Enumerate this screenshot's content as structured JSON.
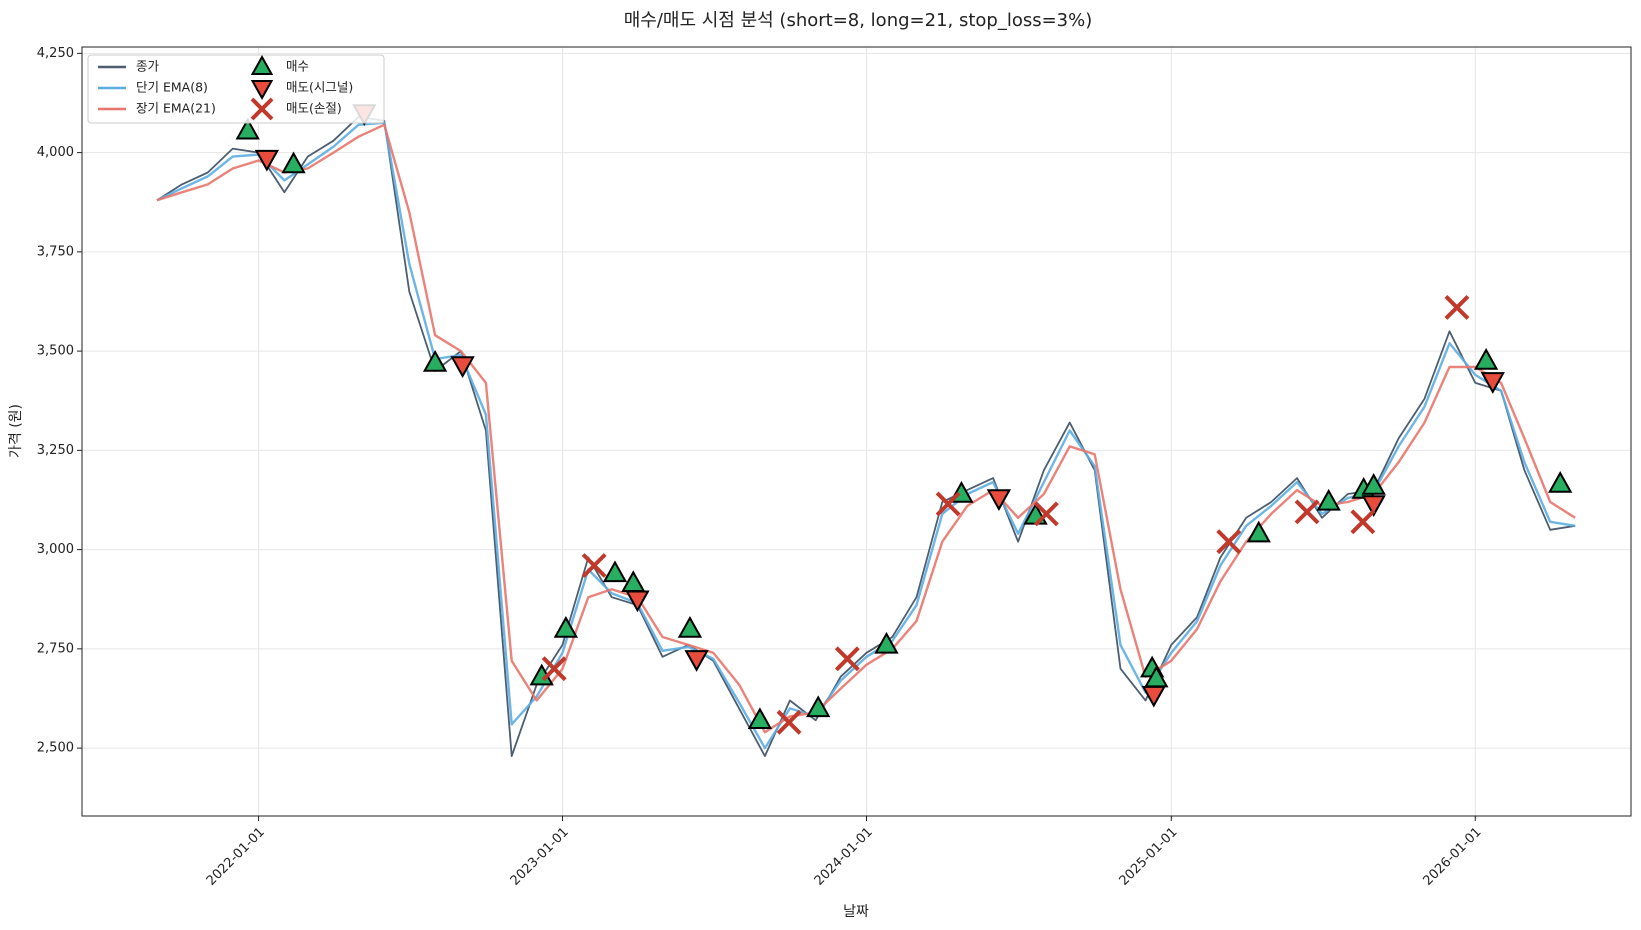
{
  "chart_data": {
    "type": "line",
    "title": "매수/매도 시점 분석 (short=8, long=21, stop_loss=3%)",
    "xlabel": "날짜",
    "ylabel": "가격 (원)",
    "grid": true,
    "legend": "upper left",
    "xlim": [
      "2021-06-03",
      "2026-07-07"
    ],
    "xticks": [
      "2022-01-01",
      "2023-01-01",
      "2024-01-01",
      "2025-01-01",
      "2026-01-01"
    ],
    "ylim": [
      2329,
      4266
    ],
    "yticks": [
      {
        "value": 2500,
        "label": "2,500"
      },
      {
        "value": 2750,
        "label": "2,750"
      },
      {
        "value": 3000,
        "label": "3,000"
      },
      {
        "value": 3250,
        "label": "3,250"
      },
      {
        "value": 3500,
        "label": "3,500"
      },
      {
        "value": 3750,
        "label": "3,750"
      },
      {
        "value": 4000,
        "label": "4,000"
      },
      {
        "value": 4250,
        "label": "4,250"
      }
    ],
    "x": [
      "2021-09-01",
      "2021-10-01",
      "2021-11-01",
      "2021-12-01",
      "2022-01-01",
      "2022-02-01",
      "2022-03-01",
      "2022-04-01",
      "2022-05-01",
      "2022-06-01",
      "2022-07-01",
      "2022-08-01",
      "2022-09-01",
      "2022-10-01",
      "2022-11-01",
      "2022-12-01",
      "2023-01-01",
      "2023-02-01",
      "2023-03-01",
      "2023-04-01",
      "2023-05-01",
      "2023-06-01",
      "2023-07-01",
      "2023-08-01",
      "2023-09-01",
      "2023-10-01",
      "2023-11-01",
      "2023-12-01",
      "2024-01-01",
      "2024-02-01",
      "2024-03-01",
      "2024-04-01",
      "2024-05-01",
      "2024-06-01",
      "2024-07-01",
      "2024-08-01",
      "2024-09-01",
      "2024-10-01",
      "2024-11-01",
      "2024-12-01",
      "2025-01-01",
      "2025-02-01",
      "2025-03-01",
      "2025-04-01",
      "2025-05-01",
      "2025-06-01",
      "2025-07-01",
      "2025-08-01",
      "2025-09-01",
      "2025-10-01",
      "2025-11-01",
      "2025-12-01",
      "2026-01-01",
      "2026-02-01",
      "2026-03-01",
      "2026-04-01",
      "2026-05-01"
    ],
    "series": [
      {
        "name": "종가",
        "color": "#4d5e70",
        "values": [
          3880,
          3920,
          3950,
          4010,
          4000,
          3900,
          3990,
          4030,
          4090,
          4080,
          3650,
          3450,
          3500,
          3300,
          2480,
          2660,
          2760,
          2980,
          2880,
          2860,
          2730,
          2760,
          2720,
          2600,
          2480,
          2620,
          2570,
          2680,
          2740,
          2780,
          2880,
          3120,
          3150,
          3180,
          3020,
          3200,
          3320,
          3200,
          2700,
          2620,
          2760,
          2830,
          2980,
          3080,
          3120,
          3180,
          3080,
          3140,
          3150,
          3280,
          3380,
          3550,
          3420,
          3400,
          3200,
          3050,
          3060
        ]
      },
      {
        "name": "단기 EMA(8)",
        "color": "#5dade2",
        "values": [
          3880,
          3910,
          3940,
          3990,
          3995,
          3930,
          3970,
          4015,
          4070,
          4075,
          3720,
          3480,
          3490,
          3340,
          2560,
          2630,
          2740,
          2950,
          2890,
          2865,
          2745,
          2755,
          2725,
          2615,
          2500,
          2600,
          2580,
          2670,
          2730,
          2770,
          2860,
          3090,
          3140,
          3170,
          3040,
          3170,
          3300,
          3210,
          2760,
          2640,
          2740,
          2820,
          2960,
          3060,
          3110,
          3170,
          3090,
          3130,
          3145,
          3260,
          3360,
          3520,
          3440,
          3400,
          3220,
          3070,
          3060
        ]
      },
      {
        "name": "장기 EMA(21)",
        "color": "#e8756b",
        "values": [
          3880,
          3900,
          3920,
          3960,
          3980,
          3950,
          3960,
          4000,
          4040,
          4070,
          3850,
          3540,
          3500,
          3420,
          2720,
          2620,
          2700,
          2880,
          2900,
          2880,
          2780,
          2760,
          2740,
          2660,
          2540,
          2580,
          2590,
          2650,
          2710,
          2750,
          2820,
          3020,
          3110,
          3150,
          3080,
          3140,
          3260,
          3240,
          2900,
          2680,
          2720,
          2800,
          2920,
          3020,
          3090,
          3150,
          3110,
          3120,
          3140,
          3220,
          3320,
          3460,
          3460,
          3420,
          3280,
          3120,
          3080
        ]
      },
      {
        "name": "매수",
        "color": "#27ae60",
        "marker": "^",
        "x": [
          "2021-12-19",
          "2022-02-12",
          "2022-08-01",
          "2022-12-07",
          "2023-01-05",
          "2023-03-05",
          "2023-03-27",
          "2023-06-03",
          "2023-08-26",
          "2023-11-04",
          "2024-01-25",
          "2024-04-24",
          "2024-07-22",
          "2024-12-09",
          "2024-12-14",
          "2025-04-16",
          "2025-07-09",
          "2025-08-20",
          "2025-09-01",
          "2026-01-14",
          "2026-04-13"
        ],
        "values": [
          4055,
          3970,
          3470,
          2680,
          2800,
          2940,
          2915,
          2800,
          2570,
          2600,
          2760,
          3140,
          3085,
          2700,
          2675,
          3040,
          3120,
          3150,
          3160,
          3475,
          3165
        ]
      },
      {
        "name": "매도(시그널)",
        "color": "#e74c3c",
        "marker": "v",
        "x": [
          "2022-01-11",
          "2022-05-08",
          "2022-09-03",
          "2023-04-01",
          "2023-06-11",
          "2024-06-08",
          "2024-12-11",
          "2025-09-01",
          "2026-01-22"
        ],
        "values": [
          3985,
          4100,
          3465,
          2875,
          2725,
          3130,
          2635,
          3115,
          3425
        ]
      },
      {
        "name": "매도(손절)",
        "color": "#c0392b",
        "marker": "x",
        "x": [
          "2022-12-22",
          "2023-02-08",
          "2023-09-30",
          "2023-12-09",
          "2024-04-08",
          "2024-08-04",
          "2025-03-11",
          "2025-06-13",
          "2025-08-19",
          "2025-12-10"
        ],
        "values": [
          2700,
          2960,
          2565,
          2725,
          3115,
          3090,
          3020,
          3095,
          3070,
          3610
        ]
      }
    ]
  }
}
